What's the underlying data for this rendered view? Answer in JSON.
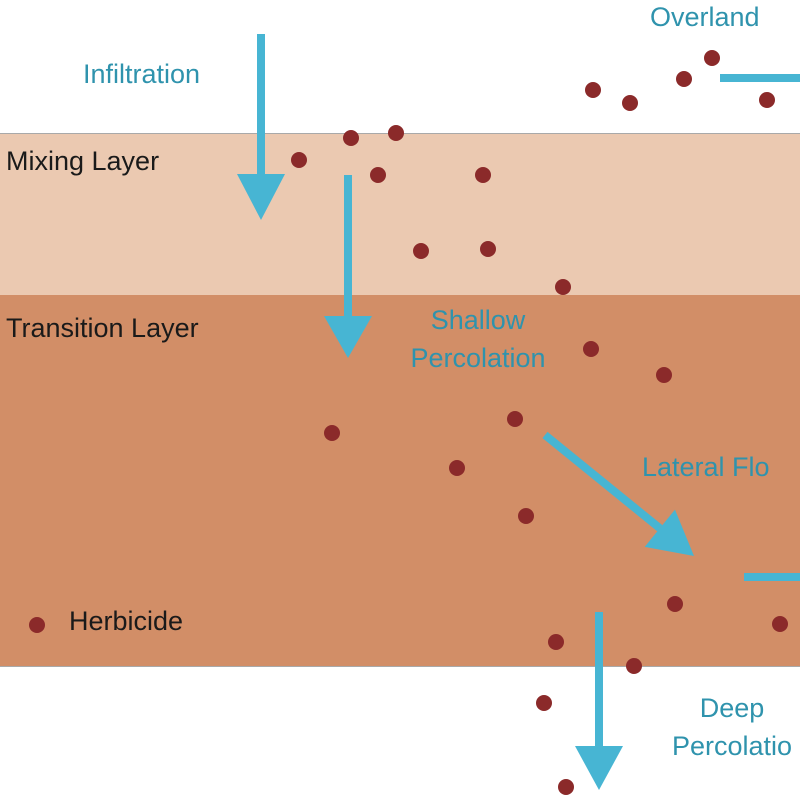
{
  "layers": {
    "mixing": {
      "label": "Mixing Layer",
      "color": "#ebc9b1"
    },
    "transition": {
      "label": "Transition Layer",
      "color": "#d28e67"
    }
  },
  "flows": {
    "infiltration": "Infiltration",
    "overland": "Overland",
    "shallow_line1": "Shallow",
    "shallow_line2": "Percolation",
    "lateral": "Lateral Flo",
    "deep_line1": "Deep",
    "deep_line2": "Percolatio"
  },
  "legend": {
    "label": "Herbicide",
    "marker_color": "#8b2a2a"
  },
  "colors": {
    "arrow": "#47b5d3",
    "text": "#2f93ad",
    "dot": "#8b2a2a"
  }
}
